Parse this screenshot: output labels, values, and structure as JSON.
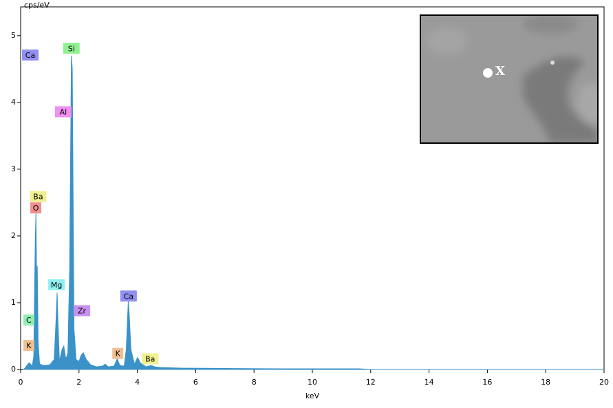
{
  "chart_data": {
    "type": "spectrum",
    "y_label": "cps/eV",
    "x_label": "keV",
    "color": "#3a92c8",
    "x": [
      0.1,
      0.15,
      0.25,
      0.3,
      0.4,
      0.45,
      0.5,
      0.525,
      0.55,
      0.57,
      0.6,
      0.65,
      0.8,
      1.0,
      1.15,
      1.22,
      1.25,
      1.28,
      1.33,
      1.42,
      1.48,
      1.55,
      1.62,
      1.68,
      1.71,
      1.74,
      1.77,
      1.8,
      1.83,
      1.9,
      2.0,
      2.08,
      2.15,
      2.25,
      2.4,
      2.6,
      2.8,
      2.9,
      3.0,
      3.2,
      3.31,
      3.4,
      3.55,
      3.62,
      3.69,
      3.72,
      3.78,
      3.9,
      4.01,
      4.1,
      4.3,
      4.47,
      4.6,
      4.8,
      5.5,
      7,
      9,
      10,
      11.6,
      12,
      20
    ],
    "values": [
      0,
      0.02,
      0.08,
      0.1,
      0.05,
      0.2,
      1.9,
      2.35,
      1.2,
      1.55,
      0.4,
      0.08,
      0.06,
      0.07,
      0.15,
      0.8,
      1.15,
      0.7,
      0.12,
      0.3,
      0.35,
      0.15,
      0.25,
      1.5,
      3.1,
      4.7,
      4.5,
      2.5,
      0.6,
      0.15,
      0.12,
      0.22,
      0.25,
      0.15,
      0.07,
      0.04,
      0.05,
      0.08,
      0.04,
      0.05,
      0.16,
      0.06,
      0.05,
      0.3,
      1.02,
      0.85,
      0.3,
      0.08,
      0.18,
      0.1,
      0.04,
      0.06,
      0.04,
      0.03,
      0.02,
      0.015,
      0.01,
      0.01,
      0.01,
      0,
      0
    ],
    "xlim": [
      0,
      20
    ],
    "xticks": [
      0,
      2,
      4,
      6,
      8,
      10,
      12,
      14,
      16,
      18,
      20
    ],
    "ylim": [
      0,
      5.4
    ],
    "yticks": [
      0,
      1,
      2,
      3,
      4,
      5
    ],
    "annotations": [
      {
        "label": "Ca",
        "energy": 0.33,
        "level": 4.71,
        "color": "#9090f0"
      },
      {
        "label": "Si",
        "energy": 1.74,
        "level": 4.81,
        "color": "#90f090"
      },
      {
        "label": "Al",
        "energy": 1.46,
        "level": 3.86,
        "color": "#f090f0"
      },
      {
        "label": "Ba",
        "energy": 0.6,
        "level": 2.59,
        "color": "#f0f090"
      },
      {
        "label": "O",
        "energy": 0.52,
        "level": 2.42,
        "color": "#f09090"
      },
      {
        "label": "Mg",
        "energy": 1.23,
        "level": 1.27,
        "color": "#90f0f0"
      },
      {
        "label": "Zr",
        "energy": 2.1,
        "level": 0.88,
        "color": "#c890f0"
      },
      {
        "label": "C",
        "energy": 0.28,
        "level": 0.74,
        "color": "#90f0b0"
      },
      {
        "label": "K",
        "energy": 0.28,
        "level": 0.36,
        "color": "#f0c090"
      },
      {
        "label": "Ca",
        "energy": 3.7,
        "level": 1.1,
        "color": "#9090f0"
      },
      {
        "label": "K",
        "energy": 3.33,
        "level": 0.24,
        "color": "#f0c090"
      },
      {
        "label": "Ba",
        "energy": 4.44,
        "level": 0.16,
        "color": "#f0f090"
      }
    ],
    "inset_marker": "X"
  }
}
